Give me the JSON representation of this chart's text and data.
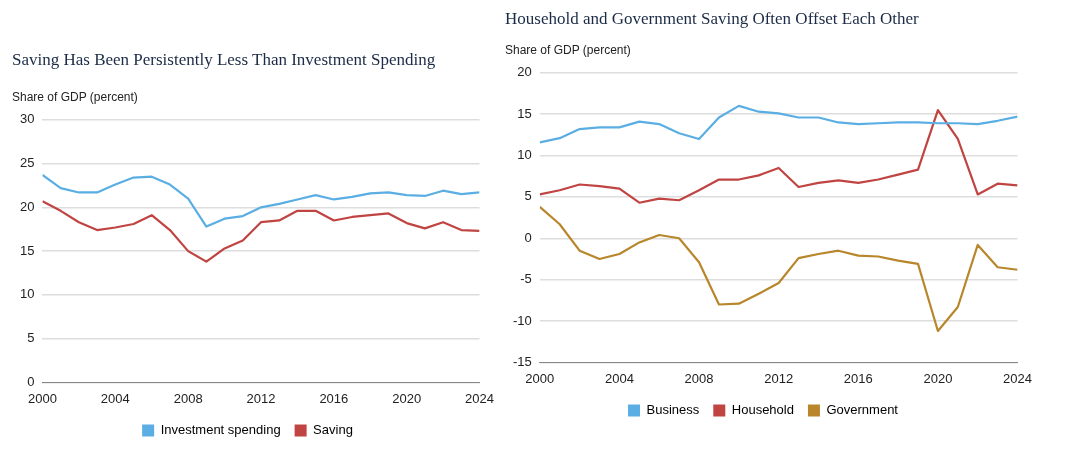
{
  "chart_data": [
    {
      "type": "line",
      "title": "Saving Has Been Persistently Less Than Investment Spending",
      "ylabel": "Share of GDP (percent)",
      "x": [
        2000,
        2001,
        2002,
        2003,
        2004,
        2005,
        2006,
        2007,
        2008,
        2009,
        2010,
        2011,
        2012,
        2013,
        2014,
        2015,
        2016,
        2017,
        2018,
        2019,
        2020,
        2021,
        2022,
        2023,
        2024
      ],
      "series": [
        {
          "name": "Investment spending",
          "color": "#5aaee4",
          "values": [
            23.7,
            22.2,
            21.7,
            21.7,
            22.6,
            23.4,
            23.5,
            22.6,
            21.0,
            17.8,
            18.7,
            19.0,
            20.0,
            20.4,
            20.9,
            21.4,
            20.9,
            21.2,
            21.6,
            21.7,
            21.4,
            21.3,
            21.9,
            21.5,
            21.7
          ]
        },
        {
          "name": "Saving",
          "color": "#c04441",
          "values": [
            20.7,
            19.6,
            18.3,
            17.4,
            17.7,
            18.1,
            19.1,
            17.4,
            15.0,
            13.8,
            15.3,
            16.2,
            18.3,
            18.5,
            19.6,
            19.6,
            18.5,
            18.9,
            19.1,
            19.3,
            18.2,
            17.6,
            18.3,
            17.4,
            17.3
          ]
        }
      ],
      "xlim": [
        2000,
        2024
      ],
      "xticks": [
        2000,
        2004,
        2008,
        2012,
        2016,
        2020,
        2024
      ],
      "ylim": [
        0,
        30
      ],
      "yticks": [
        0,
        5,
        10,
        15,
        20,
        25,
        30
      ],
      "grid": "y",
      "legend": "bottom",
      "marker": "none",
      "line_style": "solid"
    },
    {
      "type": "line",
      "title": "Household and Government Saving Often Offset Each Other",
      "ylabel": "Share of GDP (percent)",
      "x": [
        2000,
        2001,
        2002,
        2003,
        2004,
        2005,
        2006,
        2007,
        2008,
        2009,
        2010,
        2011,
        2012,
        2013,
        2014,
        2015,
        2016,
        2017,
        2018,
        2019,
        2020,
        2021,
        2022,
        2023,
        2024
      ],
      "series": [
        {
          "name": "Business",
          "color": "#5aaee4",
          "values": [
            11.6,
            12.1,
            13.2,
            13.4,
            13.4,
            14.1,
            13.8,
            12.7,
            12.0,
            14.6,
            16.0,
            15.3,
            15.1,
            14.6,
            14.6,
            14.0,
            13.8,
            13.9,
            14.0,
            14.0,
            13.9,
            13.9,
            13.8,
            14.2,
            14.7
          ]
        },
        {
          "name": "Household",
          "color": "#c04441",
          "values": [
            5.3,
            5.8,
            6.5,
            6.3,
            6.0,
            4.3,
            4.8,
            4.6,
            5.8,
            7.1,
            7.1,
            7.6,
            8.5,
            6.2,
            6.7,
            7.0,
            6.7,
            7.1,
            7.7,
            8.3,
            15.5,
            12.0,
            5.3,
            6.6,
            6.4
          ]
        },
        {
          "name": "Government",
          "color": "#b8862b",
          "values": [
            3.8,
            1.7,
            -1.5,
            -2.5,
            -1.9,
            -0.5,
            0.4,
            0.0,
            -2.9,
            -8.0,
            -7.9,
            -6.7,
            -5.4,
            -2.4,
            -1.9,
            -1.5,
            -2.1,
            -2.2,
            -2.7,
            -3.1,
            -11.2,
            -8.3,
            -0.8,
            -3.5,
            -3.8
          ]
        }
      ],
      "xlim": [
        2000,
        2024
      ],
      "xticks": [
        2000,
        2004,
        2008,
        2012,
        2016,
        2020,
        2024
      ],
      "ylim": [
        -15,
        20
      ],
      "yticks": [
        -15,
        -10,
        -5,
        0,
        5,
        10,
        15,
        20
      ],
      "grid": "y",
      "legend": "bottom",
      "marker": "none",
      "line_style": "solid"
    }
  ]
}
